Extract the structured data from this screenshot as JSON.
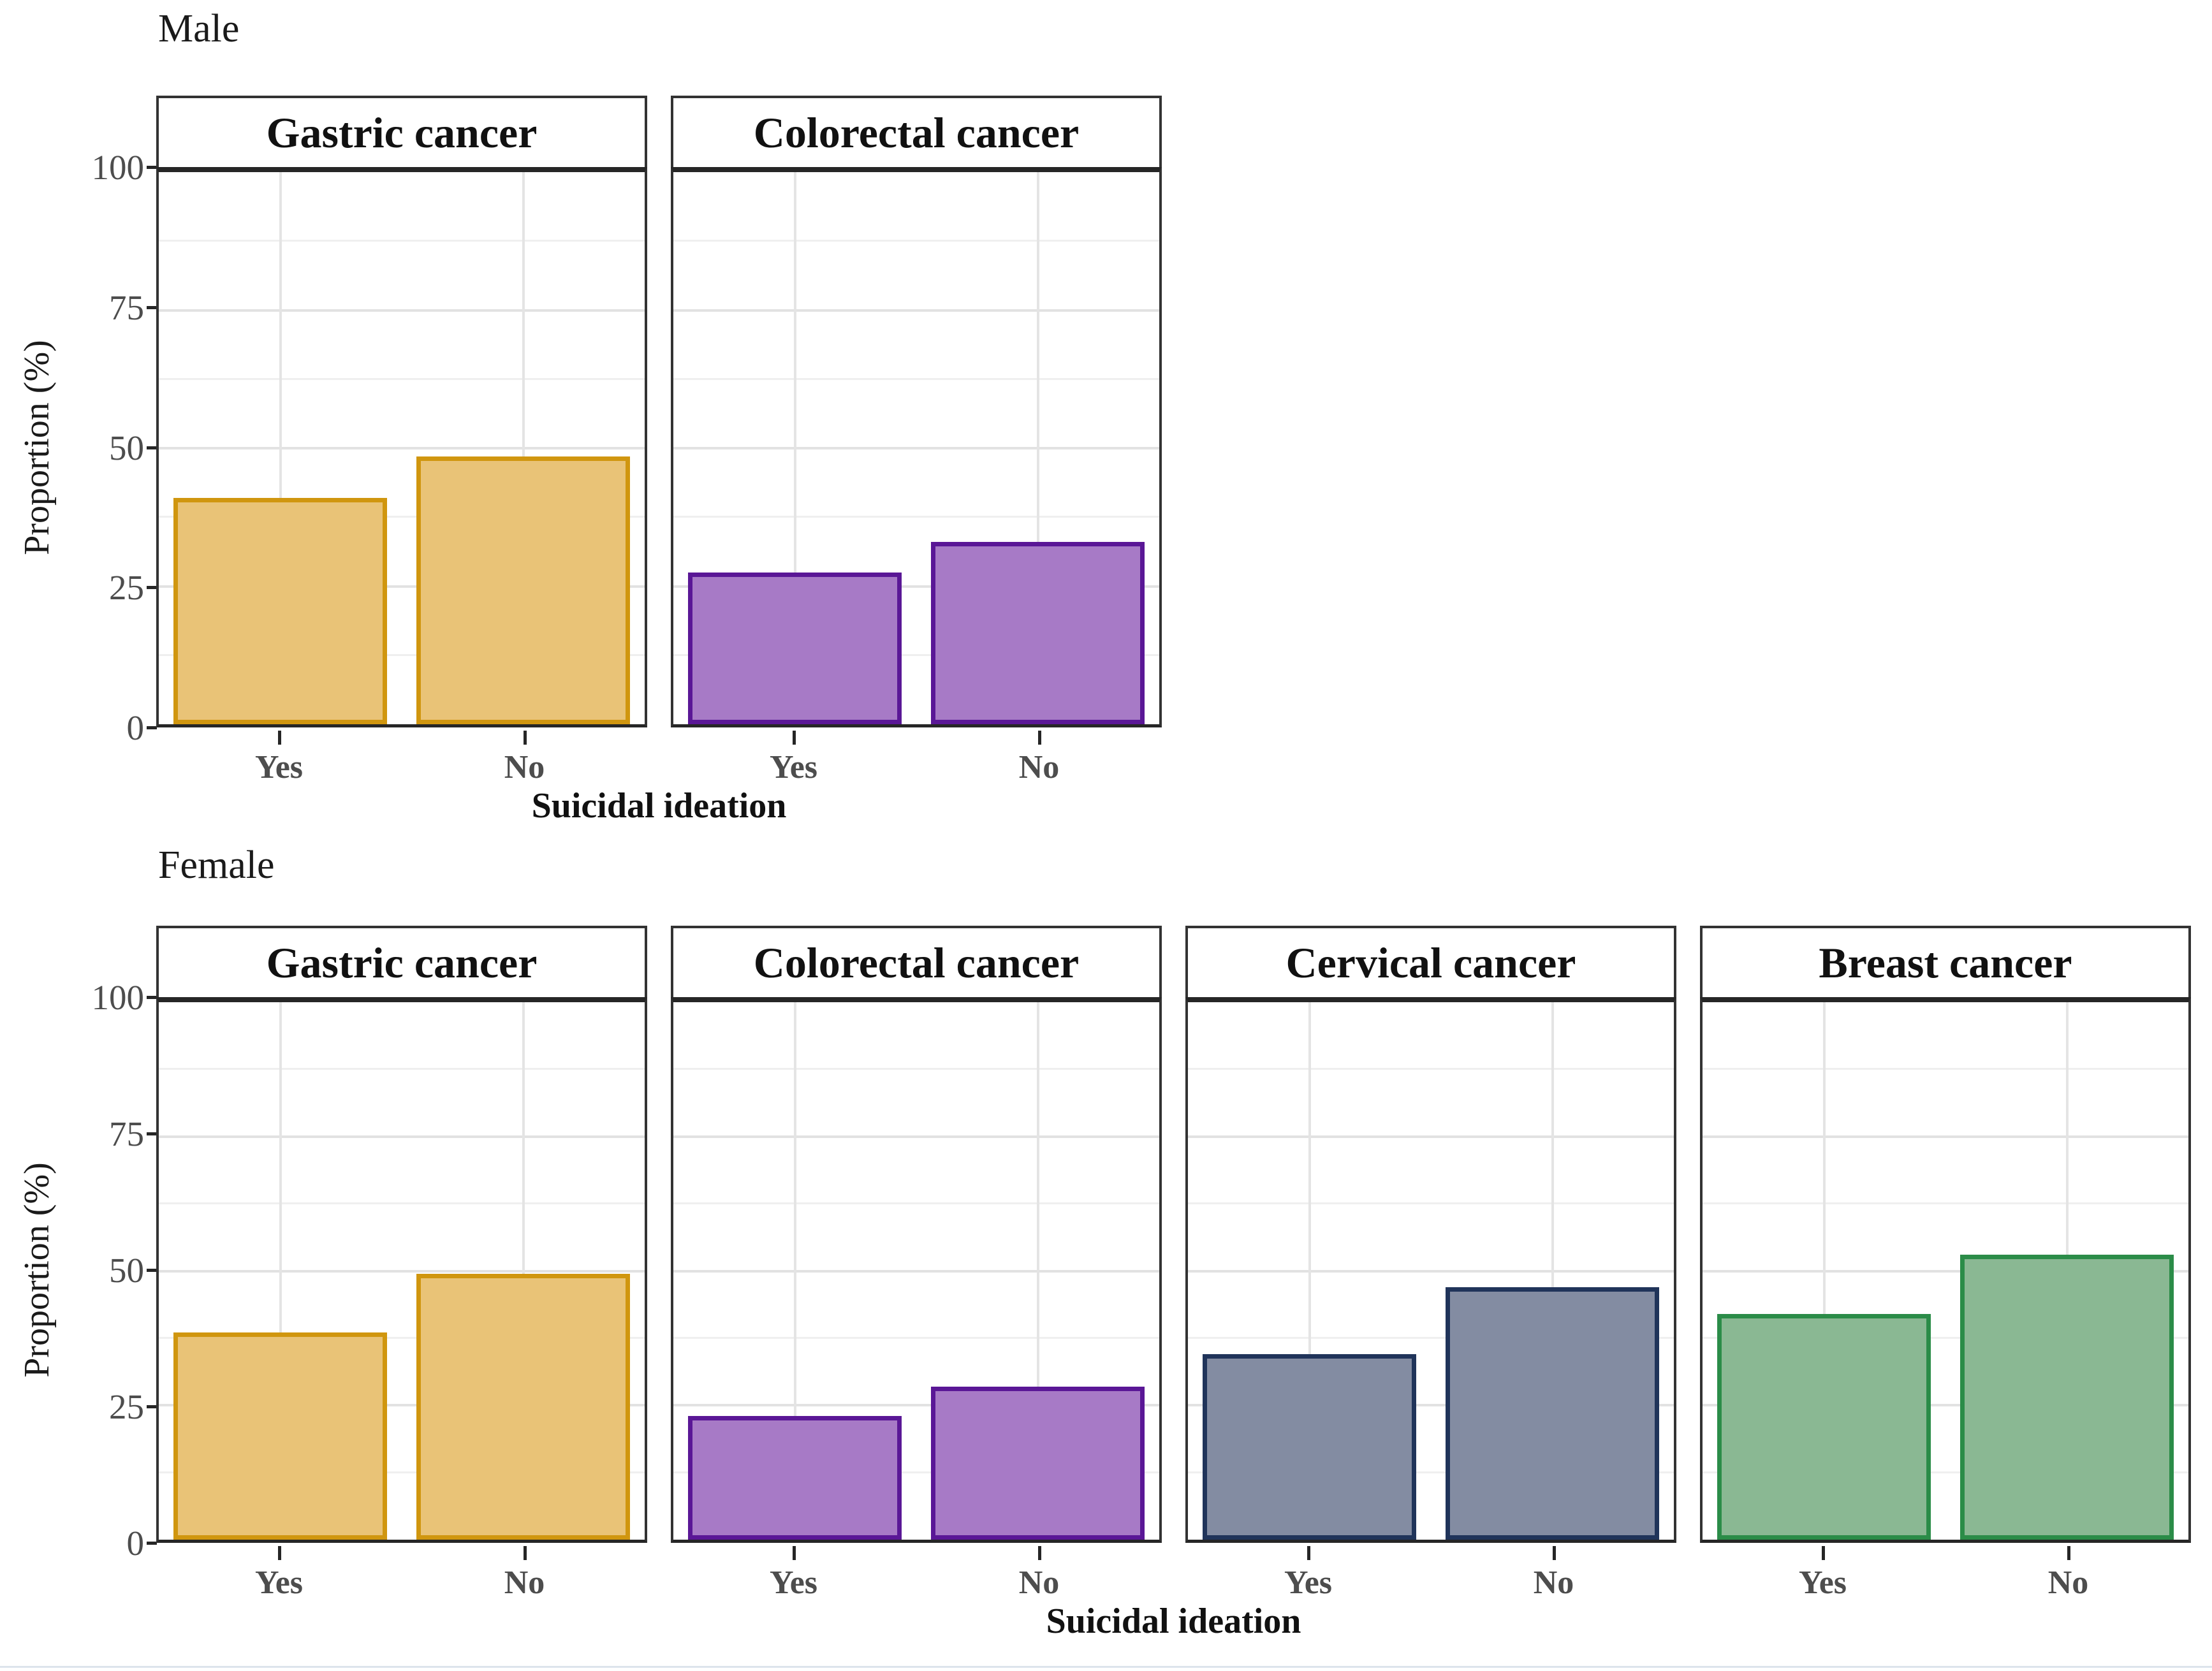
{
  "chart_data": {
    "type": "bar",
    "categories": [
      "Yes",
      "No"
    ],
    "xlabel": "Suicidal ideation",
    "ylabel": "Proportion (%)",
    "yticks": [
      0,
      25,
      50,
      75,
      100
    ],
    "minor_yticks": [
      12.5,
      37.5,
      62.5,
      87.5
    ],
    "ylim": [
      0,
      100
    ],
    "grid": "major and minor horizontal, major vertical at category centers",
    "legend": "none",
    "facet_rows": [
      {
        "label": "Male",
        "panels": [
          {
            "title": "Gastric cancer",
            "fill": "#e9c377",
            "stroke": "#d0960f",
            "values": [
              41,
              48.5
            ]
          },
          {
            "title": "Colorectal cancer",
            "fill": "#a77ac6",
            "stroke": "#5a1796",
            "values": [
              27.5,
              33
            ]
          }
        ]
      },
      {
        "label": "Female",
        "panels": [
          {
            "title": "Gastric cancer",
            "fill": "#e9c377",
            "stroke": "#d0960f",
            "values": [
              38.5,
              49.5
            ]
          },
          {
            "title": "Colorectal cancer",
            "fill": "#a77ac6",
            "stroke": "#5a1796",
            "values": [
              23,
              28.5
            ]
          },
          {
            "title": "Cervical cancer",
            "fill": "#838ca2",
            "stroke": "#20345a",
            "values": [
              34.5,
              47
            ]
          },
          {
            "title": "Breast cancer",
            "fill": "#8ab893",
            "stroke": "#2b8c48",
            "values": [
              42,
              53
            ]
          }
        ]
      }
    ]
  }
}
